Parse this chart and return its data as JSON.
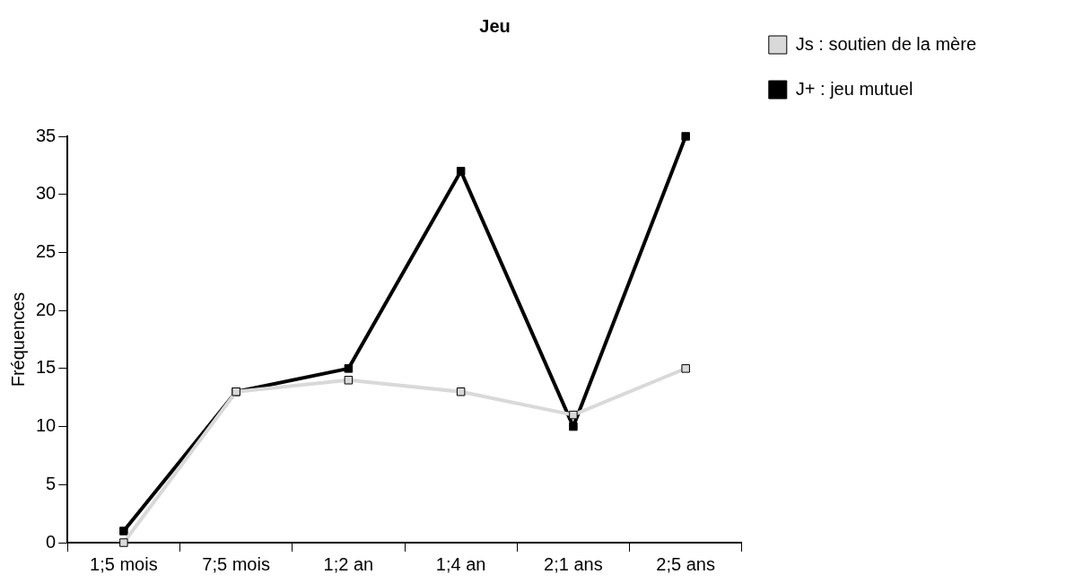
{
  "chart_data": {
    "type": "line",
    "title": "Jeu",
    "ylabel": "Fréquences",
    "categories": [
      "1;5 mois",
      "7;5 mois",
      "1;2 an",
      "1;4 an",
      "2;1 ans",
      "2;5 ans"
    ],
    "series": [
      {
        "name": "Js : soutien de la mère",
        "color": "#d9d9d9",
        "values": [
          0,
          13,
          14,
          13,
          11,
          15
        ]
      },
      {
        "name": "J+ : jeu mutuel",
        "color": "#000000",
        "values": [
          1,
          13,
          15,
          32,
          10,
          35
        ]
      }
    ],
    "ylim": [
      0,
      35
    ],
    "yticks": [
      0,
      5,
      10,
      15,
      20,
      25,
      30,
      35
    ],
    "grid": false,
    "legend": "top right",
    "marker": "square",
    "line_style": "solid"
  }
}
